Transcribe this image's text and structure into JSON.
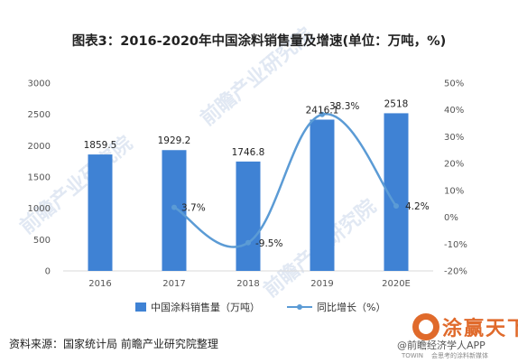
{
  "chart_data": {
    "type": "bar",
    "title": "图表3：2016-2020年中国涂料销售量及增速(单位：万吨，%)",
    "categories": [
      "2016",
      "2017",
      "2018",
      "2019",
      "2020E"
    ],
    "series": [
      {
        "name": "中国涂料销售量（万吨）",
        "type": "bar",
        "axis": "left",
        "values": [
          1859.5,
          1929.2,
          1746.8,
          2416.1,
          2518
        ],
        "labels": [
          "1859.5",
          "1929.2",
          "1746.8",
          "2416.1",
          "2518"
        ],
        "color": "#3f82d4"
      },
      {
        "name": "同比增长（%）",
        "type": "line",
        "axis": "right",
        "values": [
          null,
          3.7,
          -9.5,
          38.3,
          4.2
        ],
        "labels": [
          "",
          "3.7%",
          "-9.5%",
          "38.3%",
          "4.2%"
        ],
        "color": "#5b9bd5"
      }
    ],
    "y_left": {
      "min": 0,
      "max": 3000,
      "ticks": [
        "0",
        "500",
        "1000",
        "1500",
        "2000",
        "2500",
        "3000"
      ]
    },
    "y_right": {
      "min": -20,
      "max": 50,
      "ticks": [
        "-20%",
        "-10%",
        "0%",
        "10%",
        "20%",
        "30%",
        "40%",
        "50%"
      ]
    },
    "grid": false,
    "legend": "bottom"
  },
  "source": "资料来源：国家统计局 前瞻产业研究院整理",
  "watermark": {
    "brand": "涂赢天下",
    "handle": "@前瞻经济学人APP",
    "towin": "TOWIN",
    "tagline": "会思考的涂料新媒体",
    "faint": "前瞻产业研究院"
  }
}
